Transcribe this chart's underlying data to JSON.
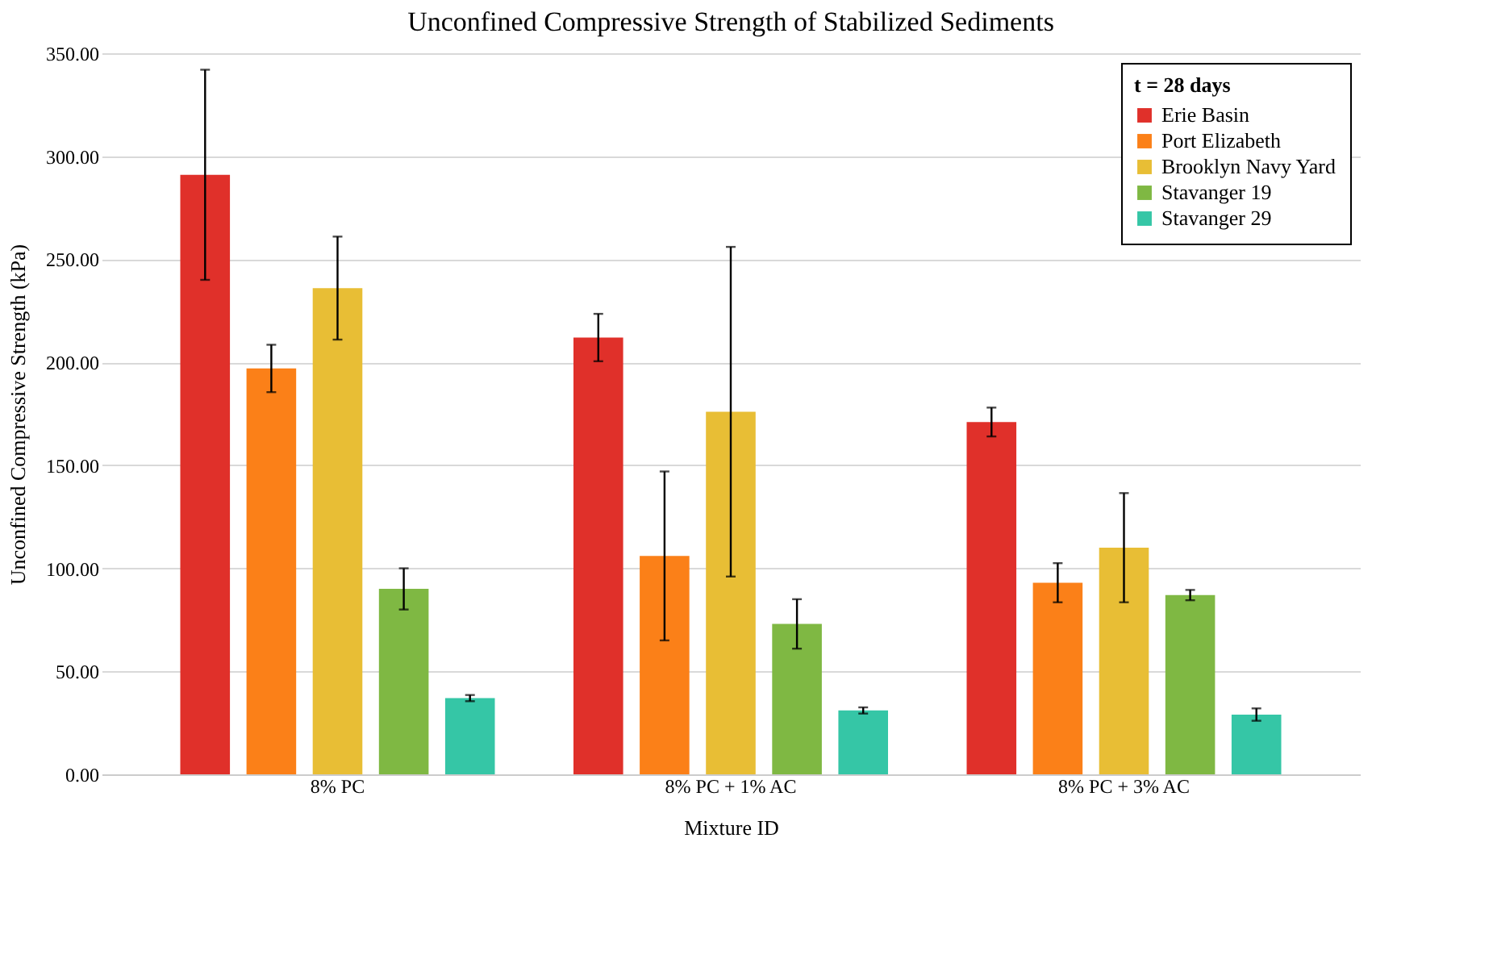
{
  "chart_data": {
    "type": "bar",
    "title": "Unconfined Compressive Strength of Stabilized Sediments",
    "xlabel": "Mixture ID",
    "ylabel": "Unconfined Compressive Strength (kPa)",
    "legend_title": "t = 28 days",
    "categories": [
      "8% PC",
      "8% PC + 1% AC",
      "8% PC + 3% AC"
    ],
    "series": [
      {
        "name": "Erie Basin",
        "color": "#e0302a",
        "values": [
          291,
          212,
          171
        ],
        "errors": [
          51,
          11.5,
          7
        ]
      },
      {
        "name": "Port Elizabeth",
        "color": "#fb8018",
        "values": [
          197,
          106,
          93
        ],
        "errors": [
          11.5,
          41,
          9.5
        ]
      },
      {
        "name": "Brooklyn Navy Yard",
        "color": "#e8be35",
        "values": [
          236,
          176,
          110
        ],
        "errors": [
          25,
          80,
          26.5
        ]
      },
      {
        "name": "Stavanger 19",
        "color": "#7fb843",
        "values": [
          90,
          73,
          87
        ],
        "errors": [
          10,
          12,
          2.5
        ]
      },
      {
        "name": "Stavanger 29",
        "color": "#35c6a6",
        "values": [
          37,
          31,
          29
        ],
        "errors": [
          1.5,
          1.5,
          3
        ]
      }
    ],
    "ylim": [
      0,
      350
    ],
    "yticks": [
      {
        "value": 0,
        "label": "0.00"
      },
      {
        "value": 50,
        "label": "50.00"
      },
      {
        "value": 100,
        "label": "100.00"
      },
      {
        "value": 150,
        "label": "150.00"
      },
      {
        "value": 200,
        "label": "200.00"
      },
      {
        "value": 250,
        "label": "250.00"
      },
      {
        "value": 300,
        "label": "300.00"
      },
      {
        "value": 350,
        "label": "350.00"
      }
    ],
    "grid": "y",
    "legend": "top right"
  }
}
